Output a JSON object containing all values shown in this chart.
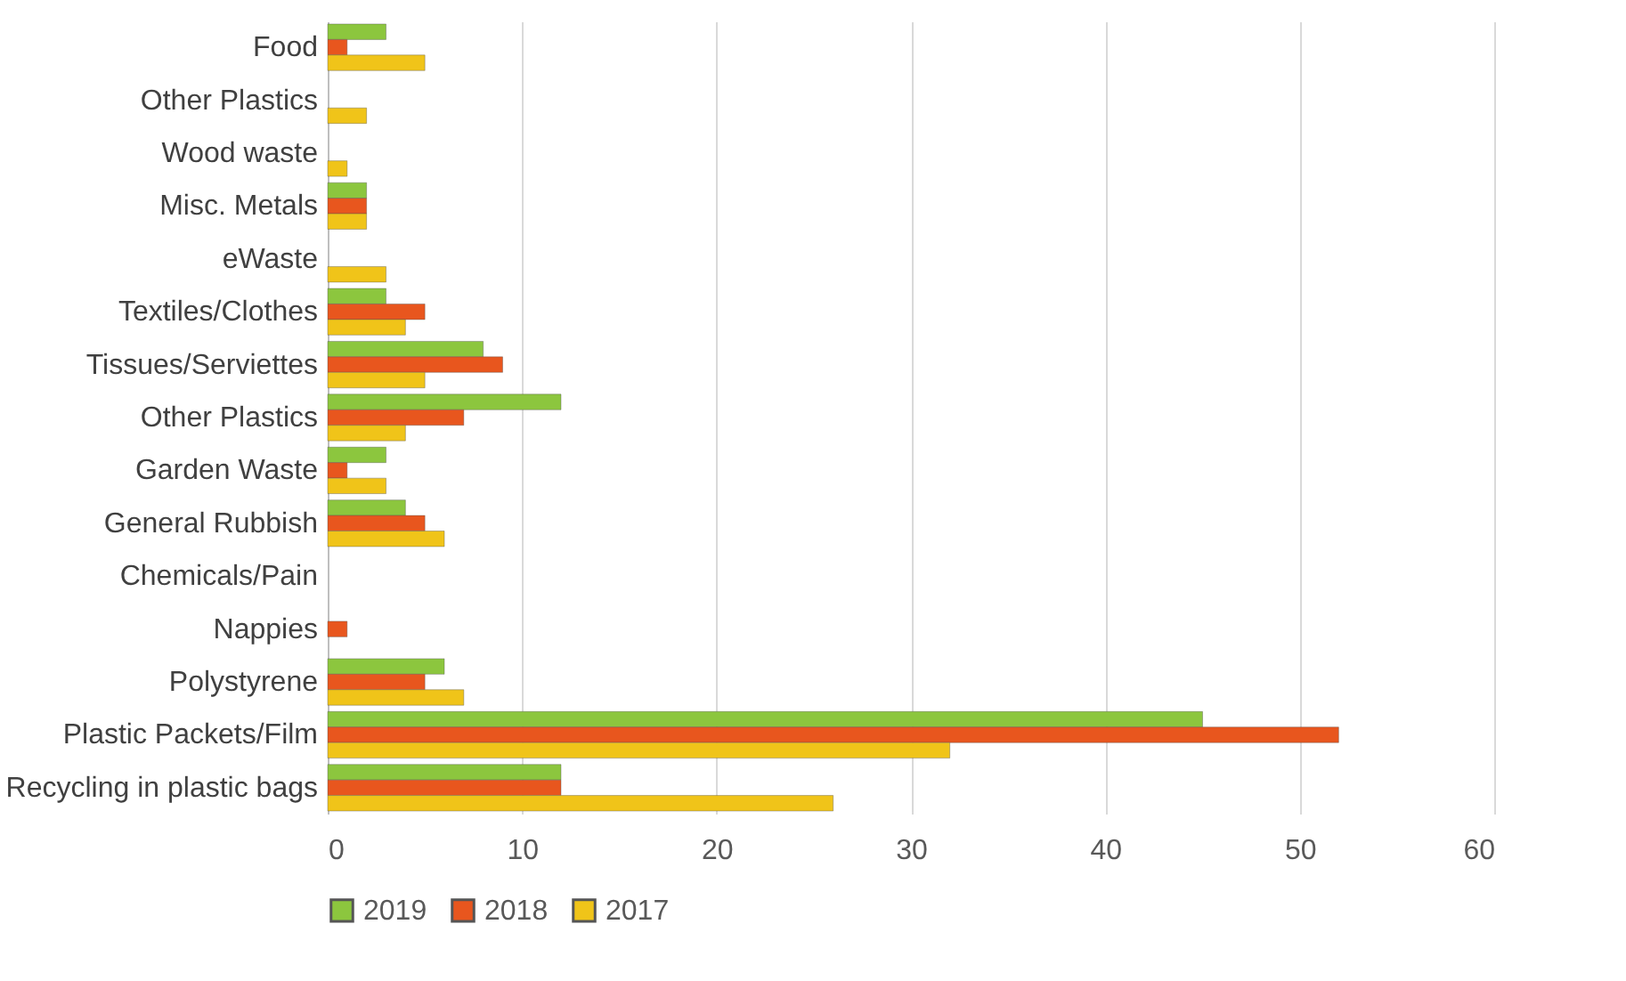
{
  "chart_data": {
    "type": "bar",
    "orientation": "horizontal",
    "categories": [
      "Food",
      "Other Plastics",
      "Wood waste",
      "Misc. Metals",
      "eWaste",
      "Textiles/Clothes",
      "Tissues/Serviettes",
      "Other Plastics",
      "Garden Waste",
      "General Rubbish",
      "Chemicals/Pain",
      "Nappies",
      "Polystyrene",
      "Plastic Packets/Film",
      "Recycling in plastic bags"
    ],
    "series": [
      {
        "name": "2019",
        "color": "#8cc63e",
        "values": [
          3,
          null,
          null,
          2,
          null,
          3,
          8,
          12,
          3,
          4,
          null,
          null,
          6,
          45,
          12
        ]
      },
      {
        "name": "2018",
        "color": "#e8561e",
        "values": [
          1,
          null,
          null,
          2,
          null,
          5,
          9,
          7,
          1,
          5,
          null,
          1,
          5,
          52,
          12
        ]
      },
      {
        "name": "2017",
        "color": "#f0c419",
        "values": [
          5,
          2,
          1,
          2,
          3,
          4,
          5,
          4,
          3,
          6,
          null,
          null,
          7,
          32,
          26
        ]
      }
    ],
    "xlim": [
      0,
      60
    ],
    "xticks": [
      0,
      10,
      20,
      30,
      40,
      50,
      60
    ],
    "grid": "x",
    "legend": "bottom"
  }
}
